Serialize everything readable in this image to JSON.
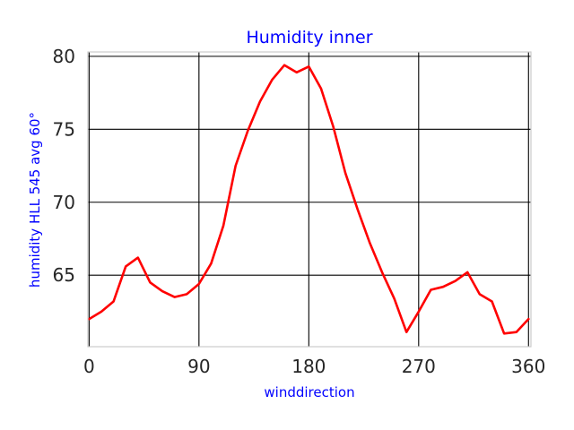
{
  "chart_data": {
    "type": "line",
    "title": "Humidity inner",
    "xlabel": "winddirection",
    "ylabel": "humidity HLL 545 avg 60°",
    "xlim": [
      -1,
      362
    ],
    "ylim": [
      60.1,
      80.3
    ],
    "xticks": [
      0,
      90,
      180,
      270,
      360
    ],
    "yticks": [
      65,
      70,
      75,
      80
    ],
    "xtick_labels": [
      "0",
      "90",
      "180",
      "270",
      "360"
    ],
    "ytick_labels": [
      "65",
      "70",
      "75",
      "80"
    ],
    "grid": true,
    "series": [
      {
        "color": "#ff0000",
        "x": [
          0,
          10,
          20,
          30,
          40,
          50,
          60,
          70,
          80,
          90,
          100,
          110,
          120,
          130,
          140,
          150,
          160,
          170,
          180,
          190,
          200,
          210,
          220,
          230,
          240,
          250,
          260,
          270,
          280,
          290,
          300,
          310,
          320,
          330,
          340,
          350,
          360
        ],
        "y": [
          62.0,
          62.5,
          63.2,
          65.6,
          66.2,
          64.5,
          63.9,
          63.5,
          63.7,
          64.4,
          65.8,
          68.4,
          72.5,
          74.9,
          76.9,
          78.4,
          79.4,
          78.9,
          79.3,
          77.8,
          75.2,
          72.0,
          69.5,
          67.2,
          65.2,
          63.4,
          61.1,
          62.5,
          64.0,
          64.2,
          64.6,
          65.2,
          63.7,
          63.2,
          61.0,
          61.1,
          62.0
        ]
      }
    ]
  }
}
